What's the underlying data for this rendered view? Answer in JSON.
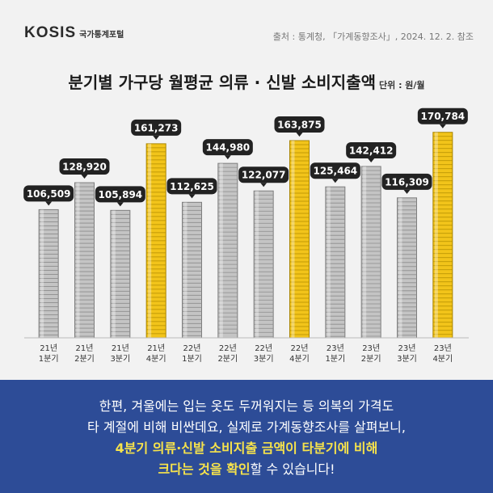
{
  "header": {
    "logo_text": "KOSIS",
    "logo_sub": "국가통계포털",
    "source": "출처 : 통계청, 「가계동향조사」, 2024. 12. 2. 참조"
  },
  "colors": {
    "gray_bar": "#c4c4c4",
    "gold_bar": "#f2c41a",
    "label_bg": "#222222",
    "footer_bg": "#2d4c97",
    "highlight": "#f7e34b"
  },
  "chart_data": {
    "type": "bar",
    "title": "분기별 가구당 월평균 의류 · 신발 소비지출액",
    "unit_label": "단위 : 원/월",
    "categories": [
      [
        "21년",
        "1분기"
      ],
      [
        "21년",
        "2분기"
      ],
      [
        "21년",
        "3분기"
      ],
      [
        "21년",
        "4분기"
      ],
      [
        "22년",
        "1분기"
      ],
      [
        "22년",
        "2분기"
      ],
      [
        "22년",
        "3분기"
      ],
      [
        "22년",
        "4분기"
      ],
      [
        "23년",
        "1분기"
      ],
      [
        "23년",
        "2분기"
      ],
      [
        "23년",
        "3분기"
      ],
      [
        "23년",
        "4분기"
      ]
    ],
    "values": [
      106509,
      128920,
      105894,
      161273,
      112625,
      144980,
      122077,
      163875,
      125464,
      142412,
      116309,
      170784
    ],
    "value_labels": [
      "106,509",
      "128,920",
      "105,894",
      "161,273",
      "112,625",
      "144,980",
      "122,077",
      "163,875",
      "125,464",
      "142,412",
      "116,309",
      "170,784"
    ],
    "highlighted": [
      false,
      false,
      false,
      true,
      false,
      false,
      false,
      true,
      false,
      false,
      false,
      true
    ],
    "ylim": [
      0,
      180000
    ],
    "grid": false
  },
  "footer": {
    "line1": "한편, 겨울에는 입는 옷도 두꺼워지는 등 의복의 가격도",
    "line2": "타 계절에 비해 비싼데요, 실제로 가계동향조사를 살펴보니,",
    "line3": "4분기 의류·신발 소비지출 금액이  타분기에 비해",
    "line4_highlight": "크다는 것을 확인",
    "line4_rest": "할 수 있습니다!"
  }
}
